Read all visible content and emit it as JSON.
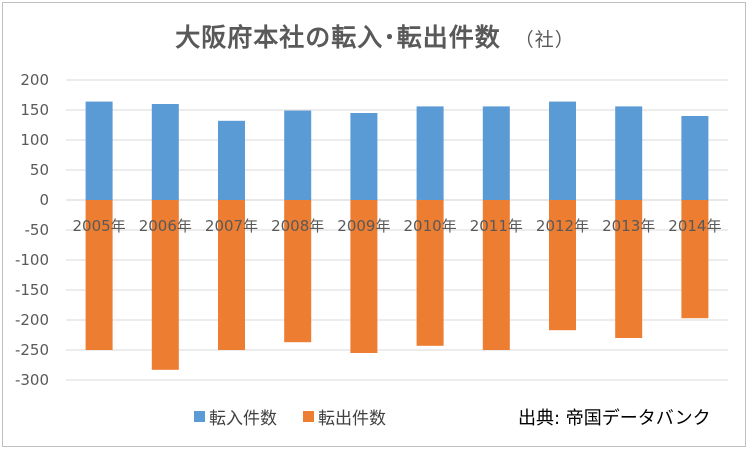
{
  "chart_data": {
    "type": "bar",
    "title": "大阪府本社の転入･転出件数",
    "unit_label": "（社）",
    "categories": [
      "2005年",
      "2006年",
      "2007年",
      "2008年",
      "2009年",
      "2010年",
      "2011年",
      "2012年",
      "2013年",
      "2014年"
    ],
    "series": [
      {
        "name": "転入件数",
        "color": "#5b9bd5",
        "values": [
          164,
          160,
          132,
          149,
          145,
          156,
          156,
          164,
          156,
          140
        ]
      },
      {
        "name": "転出件数",
        "color": "#ed7d31",
        "values": [
          -250,
          -283,
          -250,
          -237,
          -255,
          -243,
          -250,
          -217,
          -230,
          -197
        ]
      }
    ],
    "y_ticks": [
      200,
      150,
      100,
      50,
      0,
      -50,
      -100,
      -150,
      -200,
      -250,
      -300
    ],
    "ylim": [
      -300,
      200
    ],
    "grid": true,
    "legend_position": "bottom-left",
    "source": "出典: 帝国データバンク"
  }
}
